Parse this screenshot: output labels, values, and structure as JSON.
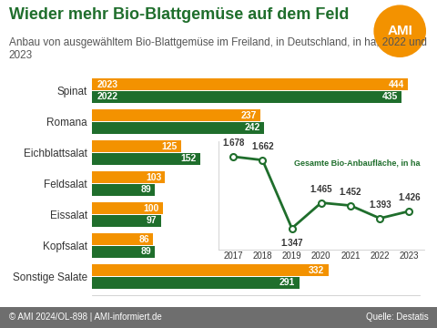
{
  "title": "Wieder mehr Bio-Blattgemüse auf dem Feld",
  "subtitle": "Anbau von ausgewähltem Bio-Blattgemüse im Freiland, in Deutschland, in ha, 2022 und 2023",
  "logo": "AMI",
  "footer": {
    "left": "© AMI 2024/OL-898 | AMI-informiert.de",
    "right": "Quelle: Destatis"
  },
  "chart_data": [
    {
      "type": "bar",
      "orientation": "horizontal",
      "categories": [
        "Spinat",
        "Romana",
        "Eichblattsalat",
        "Feldsalat",
        "Eissalat",
        "Kopfsalat",
        "Sonstige Salate"
      ],
      "series": [
        {
          "name": "2023",
          "color": "#f39200",
          "values": [
            444,
            237,
            125,
            103,
            100,
            86,
            332
          ]
        },
        {
          "name": "2022",
          "color": "#1f6e2c",
          "values": [
            435,
            242,
            152,
            89,
            97,
            89,
            291
          ]
        }
      ],
      "xlim": [
        0,
        460
      ],
      "tick_labels": "y",
      "data_labels": true
    },
    {
      "type": "line",
      "title": "Gesamte Bio-Anbaufläche, in ha",
      "x": [
        2017,
        2018,
        2019,
        2020,
        2021,
        2022,
        2023
      ],
      "values": [
        1678,
        1662,
        1347,
        1465,
        1452,
        1393,
        1426
      ],
      "value_labels": [
        "1.678",
        "1.662",
        "1.347",
        "1.465",
        "1.452",
        "1.393",
        "1.426"
      ],
      "color": "#1f6e2c",
      "marker": "circle",
      "xlim": [
        2016.5,
        2023.5
      ],
      "xticks": [
        2017,
        2018,
        2019,
        2020,
        2021,
        2022,
        2023
      ],
      "ylim": [
        1250,
        1750
      ],
      "tick_labels": "x",
      "data_labels": true
    }
  ]
}
